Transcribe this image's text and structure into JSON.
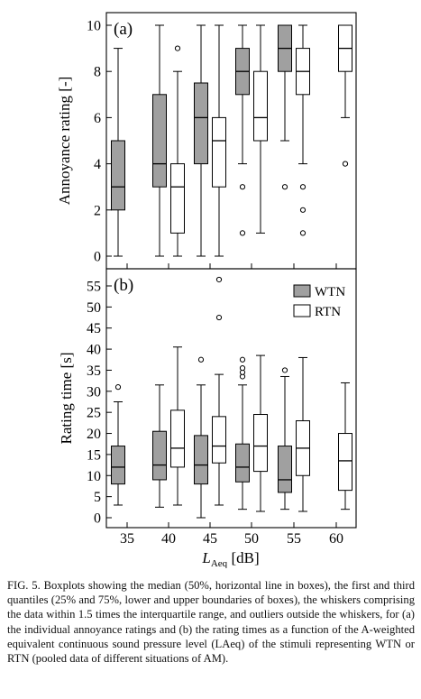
{
  "chart_data": [
    {
      "type": "boxplot",
      "panel_label": "(a)",
      "ylabel": "Annoyance rating [-]",
      "ylim": [
        0,
        10
      ],
      "yticks": [
        0,
        2,
        4,
        6,
        8,
        10
      ],
      "xlim": [
        32,
        63
      ],
      "x_ticks": [
        35,
        40,
        45,
        50,
        55,
        60
      ],
      "series": [
        {
          "name": "WTN",
          "fill": "#a0a0a0",
          "boxes": [
            {
              "x": 35,
              "whisker_low": 0,
              "q1": 2,
              "median": 3,
              "q3": 5,
              "whisker_high": 9,
              "outliers": []
            },
            {
              "x": 40,
              "whisker_low": 0,
              "q1": 3,
              "median": 4,
              "q3": 7,
              "whisker_high": 10,
              "outliers": []
            },
            {
              "x": 45,
              "whisker_low": 0,
              "q1": 4,
              "median": 6,
              "q3": 7.5,
              "whisker_high": 10,
              "outliers": []
            },
            {
              "x": 50,
              "whisker_low": 4,
              "q1": 7,
              "median": 8,
              "q3": 9,
              "whisker_high": 10,
              "outliers": [
                3,
                1
              ]
            },
            {
              "x": 55,
              "whisker_low": 5,
              "q1": 8,
              "median": 9,
              "q3": 10,
              "whisker_high": 10,
              "outliers": [
                3
              ]
            }
          ]
        },
        {
          "name": "RTN",
          "fill": "#ffffff",
          "boxes": [
            {
              "x": 40,
              "whisker_low": 0,
              "q1": 1,
              "median": 3,
              "q3": 4,
              "whisker_high": 8,
              "outliers": [
                9
              ]
            },
            {
              "x": 45,
              "whisker_low": 0,
              "q1": 3,
              "median": 5,
              "q3": 6,
              "whisker_high": 10,
              "outliers": []
            },
            {
              "x": 50,
              "whisker_low": 1,
              "q1": 5,
              "median": 6,
              "q3": 8,
              "whisker_high": 10,
              "outliers": []
            },
            {
              "x": 55,
              "whisker_low": 4,
              "q1": 7,
              "median": 8,
              "q3": 9,
              "whisker_high": 10,
              "outliers": [
                3,
                2,
                1
              ]
            },
            {
              "x": 60,
              "whisker_low": 6,
              "q1": 8,
              "median": 9,
              "q3": 10,
              "whisker_high": 10,
              "outliers": [
                4
              ]
            }
          ]
        }
      ]
    },
    {
      "type": "boxplot",
      "panel_label": "(b)",
      "ylabel": "Rating time [s]",
      "ylim": [
        -2,
        58
      ],
      "yticks": [
        0,
        5,
        10,
        15,
        20,
        25,
        30,
        35,
        40,
        45,
        50,
        55
      ],
      "xlim": [
        32,
        63
      ],
      "x_ticks": [
        35,
        40,
        45,
        50,
        55,
        60
      ],
      "xlabel_main": "L",
      "xlabel_sub": "Aeq",
      "xlabel_unit": "[dB]",
      "legend": {
        "position": "top-right",
        "entries": [
          "WTN",
          "RTN"
        ]
      },
      "series": [
        {
          "name": "WTN",
          "fill": "#a0a0a0",
          "boxes": [
            {
              "x": 35,
              "whisker_low": 3,
              "q1": 8,
              "median": 12,
              "q3": 17,
              "whisker_high": 27.5,
              "outliers": [
                31
              ]
            },
            {
              "x": 40,
              "whisker_low": 2.5,
              "q1": 9,
              "median": 12.5,
              "q3": 20.5,
              "whisker_high": 31.5,
              "outliers": []
            },
            {
              "x": 45,
              "whisker_low": 0,
              "q1": 8,
              "median": 12.5,
              "q3": 19.5,
              "whisker_high": 31.5,
              "outliers": [
                37.5
              ]
            },
            {
              "x": 50,
              "whisker_low": 2,
              "q1": 8.5,
              "median": 12,
              "q3": 17.5,
              "whisker_high": 31.5,
              "outliers": [
                33.5,
                34.5,
                35.5,
                37.5
              ]
            },
            {
              "x": 55,
              "whisker_low": 2,
              "q1": 6,
              "median": 9,
              "q3": 17,
              "whisker_high": 33.5,
              "outliers": [
                35
              ]
            }
          ]
        },
        {
          "name": "RTN",
          "fill": "#ffffff",
          "boxes": [
            {
              "x": 40,
              "whisker_low": 3,
              "q1": 12,
              "median": 16.5,
              "q3": 25.5,
              "whisker_high": 40.5,
              "outliers": []
            },
            {
              "x": 45,
              "whisker_low": 3,
              "q1": 13,
              "median": 17,
              "q3": 24,
              "whisker_high": 34,
              "outliers": [
                47.5,
                56.5
              ]
            },
            {
              "x": 50,
              "whisker_low": 1.5,
              "q1": 11,
              "median": 17,
              "q3": 24.5,
              "whisker_high": 38.5,
              "outliers": []
            },
            {
              "x": 55,
              "whisker_low": 1.5,
              "q1": 10,
              "median": 16.5,
              "q3": 23,
              "whisker_high": 38,
              "outliers": []
            },
            {
              "x": 60,
              "whisker_low": 2,
              "q1": 6.5,
              "median": 13.5,
              "q3": 20,
              "whisker_high": 32,
              "outliers": []
            }
          ]
        }
      ]
    }
  ],
  "caption": "FIG. 5. Boxplots showing the median (50%, horizontal line in boxes), the first and third quantiles (25% and 75%, lower and upper boundaries of boxes), the whiskers comprising the data within 1.5 times the interquartile range, and outliers outside the whiskers, for (a) the individual annoyance ratings and (b) the rating times as a function of the A-weighted equivalent continuous sound pressure level (LAeq) of the stimuli representing WTN or RTN (pooled data of different situations of AM)."
}
